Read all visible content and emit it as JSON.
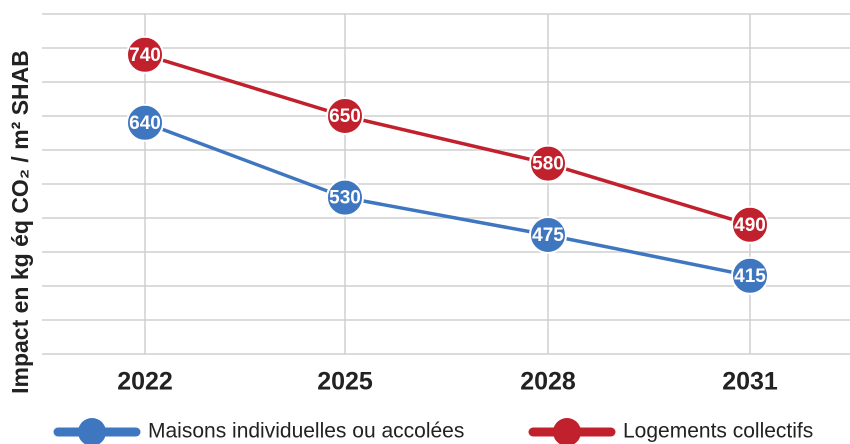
{
  "chart_data": {
    "type": "line",
    "ylabel": "Impact en kg éq CO₂ / m² SHAB",
    "categories": [
      "2022",
      "2025",
      "2028",
      "2031"
    ],
    "series": [
      {
        "name": "Maisons individuelles ou accolées",
        "color": "#3f76c0",
        "values": [
          640,
          530,
          475,
          415
        ]
      },
      {
        "name": "Logements collectifs",
        "color": "#c0212d",
        "values": [
          740,
          650,
          580,
          490
        ]
      }
    ],
    "ylim": [
      300,
      800
    ],
    "yticks": [
      300,
      350,
      400,
      450,
      500,
      550,
      600,
      650,
      700,
      750,
      800
    ],
    "grid": true,
    "legend": "bottom"
  }
}
